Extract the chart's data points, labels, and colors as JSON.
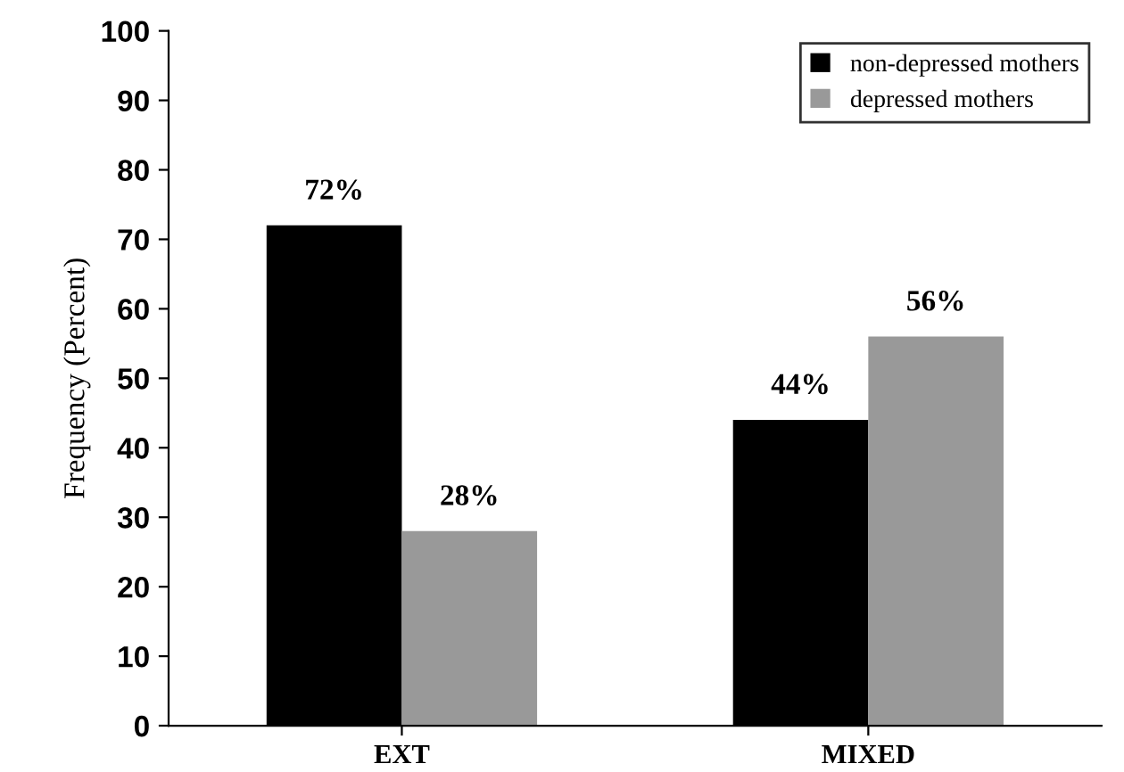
{
  "chart_data": {
    "type": "bar",
    "ylabel": "Frequency (Percent)",
    "categories": [
      "EXT",
      "MIXED"
    ],
    "series": [
      {
        "name": "non-depressed mothers",
        "color": "#000000",
        "values": [
          72,
          44
        ],
        "value_labels": [
          "72%",
          "44%"
        ]
      },
      {
        "name": "depressed mothers",
        "color": "#999999",
        "values": [
          28,
          56
        ],
        "value_labels": [
          "28%",
          "56%"
        ]
      }
    ],
    "ylim": [
      0,
      100
    ],
    "yticks": [
      0,
      10,
      20,
      30,
      40,
      50,
      60,
      70,
      80,
      90,
      100
    ],
    "grid": false,
    "legend": "top right"
  }
}
